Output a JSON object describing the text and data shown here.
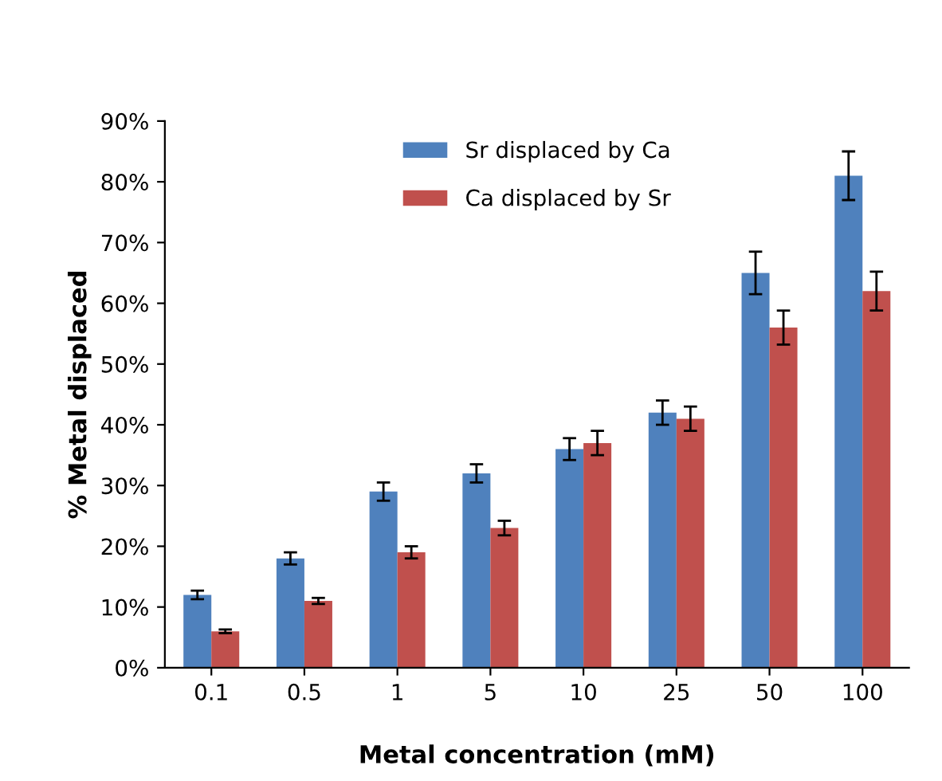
{
  "chart_data": {
    "type": "bar",
    "xlabel": "Metal concentration (mM)",
    "ylabel": "% Metal displaced",
    "categories": [
      "0.1",
      "0.5",
      "1",
      "5",
      "10",
      "25",
      "50",
      "100"
    ],
    "series": [
      {
        "name": "Sr displaced by Ca",
        "color": "#4f81bd",
        "values": [
          12,
          18,
          29,
          32,
          36,
          42,
          65,
          81
        ],
        "errors": [
          0.7,
          1,
          1.5,
          1.5,
          1.8,
          2,
          3.5,
          4
        ]
      },
      {
        "name": "Ca displaced by Sr",
        "color": "#c0504d",
        "values": [
          6,
          11,
          19,
          23,
          37,
          41,
          56,
          62
        ],
        "errors": [
          0.3,
          0.5,
          1,
          1.2,
          2,
          2,
          2.8,
          3.2
        ]
      }
    ],
    "ylim": [
      0,
      90
    ],
    "yticks": [
      {
        "value": 0,
        "label": "0%"
      },
      {
        "value": 10,
        "label": "10%"
      },
      {
        "value": 20,
        "label": "20%"
      },
      {
        "value": 30,
        "label": "30%"
      },
      {
        "value": 40,
        "label": "40%"
      },
      {
        "value": 50,
        "label": "50%"
      },
      {
        "value": 60,
        "label": "60%"
      },
      {
        "value": 70,
        "label": "70%"
      },
      {
        "value": 80,
        "label": "80%"
      },
      {
        "value": 90,
        "label": "90%"
      }
    ],
    "grid": false,
    "legend": "top"
  }
}
